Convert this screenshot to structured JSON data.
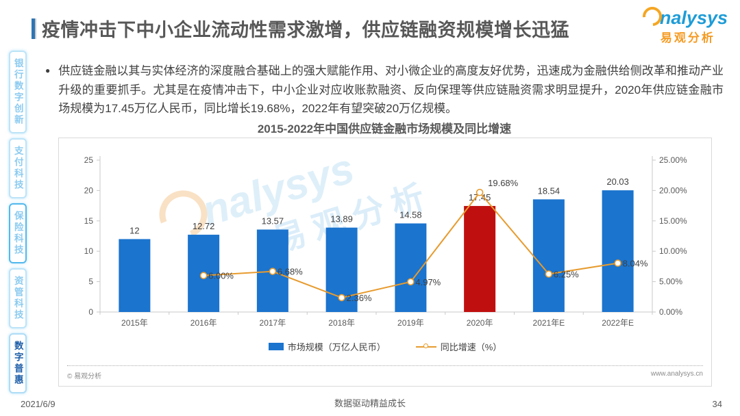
{
  "header": {
    "title": "疫情冲击下中小企业流动性需求激增，供应链融资规模增长迅猛",
    "logo_en": "nalysys",
    "logo_cn": "易观分析"
  },
  "sidebar": {
    "tabs": [
      {
        "label": "银行数字创新",
        "active": false,
        "emphasized": false
      },
      {
        "label": "支付科技",
        "active": false,
        "emphasized": false
      },
      {
        "label": "保险科技",
        "active": false,
        "emphasized": true
      },
      {
        "label": "资管科技",
        "active": false,
        "emphasized": false
      },
      {
        "label": "数字普惠",
        "active": true,
        "emphasized": false
      }
    ]
  },
  "body": {
    "bullet": "●",
    "paragraph": "供应链金融以其与实体经济的深度融合基础上的强大赋能作用、对小微企业的高度友好优势，迅速成为金融供给侧改革和推动产业升级的重要抓手。尤其是在疫情冲击下，中小企业对应收账款融资、反向保理等供应链融资需求明显提升，2020年供应链金融市场规模为17.45万亿人民币，同比增长19.68%，2022年有望突破20万亿规模。"
  },
  "chart_data": {
    "type": "bar",
    "title": "2015-2022年中国供应链金融市场规模及同比增速",
    "categories": [
      "2015年",
      "2016年",
      "2017年",
      "2018年",
      "2019年",
      "2020年",
      "2021年E",
      "2022年E"
    ],
    "series": [
      {
        "name": "市场规模（万亿人民币）",
        "type": "bar",
        "values": [
          12,
          12.72,
          13.57,
          13.89,
          14.58,
          17.45,
          18.54,
          20.03
        ],
        "labels": [
          "12",
          "12.72",
          "13.57",
          "13.89",
          "14.58",
          "17.45",
          "18.54",
          "20.03"
        ]
      },
      {
        "name": "同比增速（%）",
        "type": "line",
        "values": [
          null,
          6.0,
          6.68,
          2.36,
          4.97,
          19.68,
          6.25,
          8.04
        ],
        "labels": [
          null,
          "6.00%",
          "6.68%",
          "2.36%",
          "4.97%",
          "19.68%",
          "6.25%",
          "8.04%"
        ]
      }
    ],
    "left_axis": {
      "min": 0,
      "max": 25,
      "ticks": [
        "0",
        "5",
        "10",
        "15",
        "20",
        "25"
      ]
    },
    "right_axis": {
      "min": 0,
      "max": 25,
      "ticks": [
        "0.00%",
        "5.00%",
        "10.00%",
        "15.00%",
        "20.00%",
        "25.00%"
      ]
    },
    "highlight_index": 5,
    "bar_color": "#1B74CE",
    "highlight_color": "#C00F0F",
    "line_color": "#E79B2E",
    "line_label_offsets": {
      "5": [
        12,
        -9
      ]
    },
    "grid": false,
    "legend_position": "bottom"
  },
  "watermark": {
    "en": "nalysys",
    "cn": "易观分析"
  },
  "chart_footer": {
    "copyright": "© 易观分析",
    "website": "www.analysys.cn"
  },
  "footer": {
    "date": "2021/6/9",
    "slogan": "数据驱动精益成长",
    "page": "34"
  }
}
